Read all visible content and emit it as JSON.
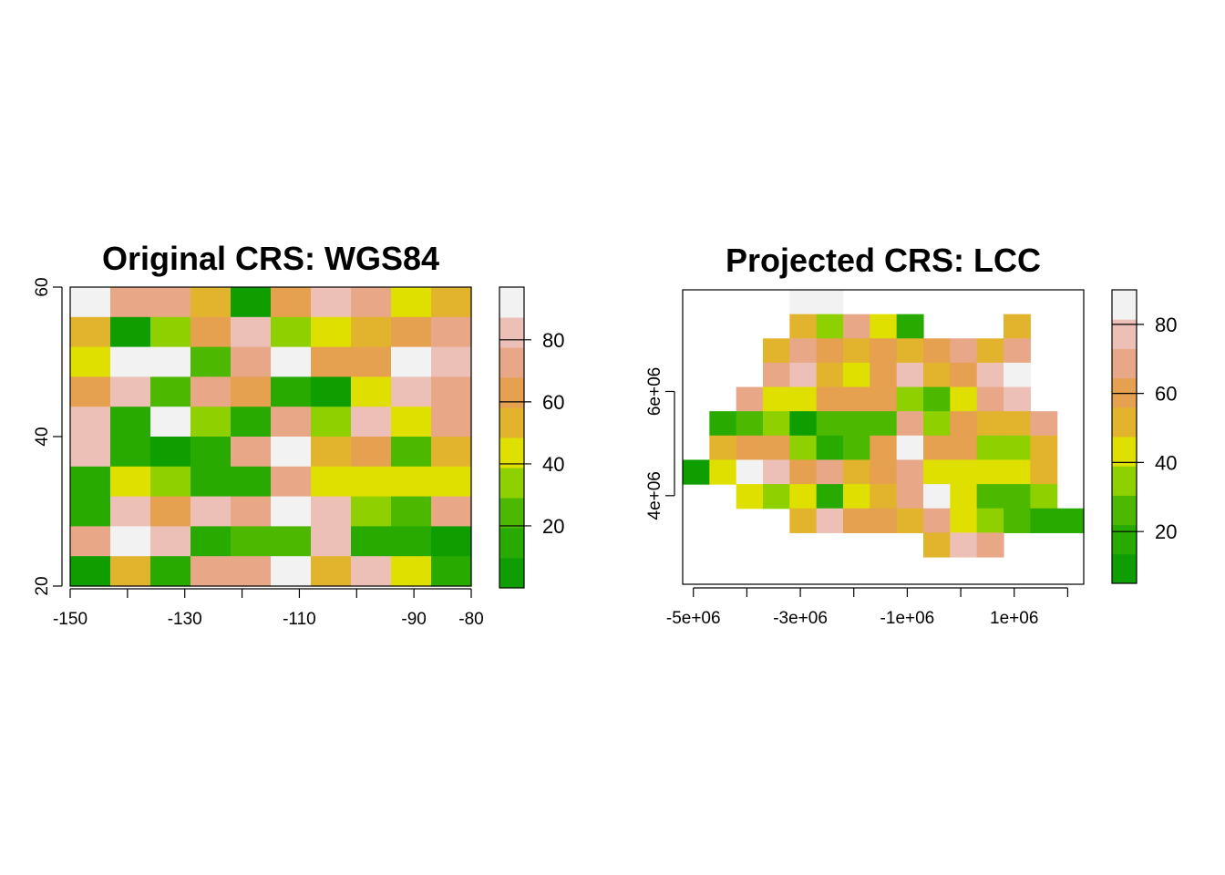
{
  "palette": {
    "colors": [
      "#0e9e00",
      "#28aa00",
      "#4cb900",
      "#8fd100",
      "#e0e000",
      "#e2b42e",
      "#e5a050",
      "#e8a888",
      "#ecc0b6",
      "#f2f2f2"
    ],
    "breaks": [
      0,
      10,
      20,
      30,
      40,
      50,
      60,
      70,
      80,
      90,
      100
    ]
  },
  "chart_data": [
    {
      "type": "heatmap",
      "title": "Original CRS: WGS84",
      "x_range": [
        -150,
        -80
      ],
      "y_range": [
        20,
        60
      ],
      "x_ticks": [
        -150,
        -140,
        -130,
        -120,
        -110,
        -100,
        -90,
        -80
      ],
      "x_tick_labels": [
        "-150",
        "",
        "-130",
        "",
        "-110",
        "",
        "-90",
        "-80"
      ],
      "y_ticks": [
        20,
        40,
        60
      ],
      "y_tick_labels": [
        "20",
        "40",
        "60"
      ],
      "legend_ticks": [
        20,
        40,
        60,
        80
      ],
      "legend_range": [
        0,
        97
      ],
      "legend_colors": [
        "#0e9e00",
        "#28aa00",
        "#4cb900",
        "#8fd100",
        "#e0e000",
        "#e2b42e",
        "#e5a050",
        "#e8a888",
        "#ecc0b6",
        "#f2f2f2"
      ],
      "ncols": 10,
      "nrows": 10,
      "values": [
        [
          95,
          75,
          75,
          55,
          5,
          65,
          85,
          75,
          45,
          55
        ],
        [
          55,
          5,
          35,
          65,
          85,
          35,
          45,
          55,
          65,
          75
        ],
        [
          45,
          95,
          95,
          25,
          75,
          95,
          65,
          65,
          95,
          85
        ],
        [
          65,
          85,
          25,
          75,
          65,
          15,
          5,
          45,
          85,
          75
        ],
        [
          85,
          15,
          95,
          35,
          15,
          75,
          35,
          85,
          45,
          75
        ],
        [
          85,
          15,
          5,
          15,
          75,
          95,
          55,
          65,
          25,
          55
        ],
        [
          15,
          45,
          35,
          15,
          15,
          75,
          45,
          45,
          45,
          45
        ],
        [
          15,
          85,
          65,
          85,
          75,
          95,
          85,
          35,
          25,
          75
        ],
        [
          75,
          95,
          85,
          15,
          25,
          25,
          85,
          15,
          15,
          5
        ],
        [
          5,
          55,
          15,
          75,
          75,
          95,
          55,
          85,
          45,
          15
        ]
      ]
    },
    {
      "type": "heatmap",
      "title": "Projected CRS: LCC",
      "x_range": [
        -5200000,
        2300000
      ],
      "y_range": [
        2300000,
        7950000
      ],
      "x_ticks": [
        -5000000,
        -4000000,
        -3000000,
        -2000000,
        -1000000,
        0,
        1000000,
        2000000
      ],
      "x_tick_labels": [
        "-5e+06",
        "",
        "-3e+06",
        "",
        "-1e+06",
        "",
        "1e+06",
        ""
      ],
      "y_ticks": [
        4000000,
        6000000
      ],
      "y_tick_labels": [
        "4e+06",
        "6e+06"
      ],
      "legend_ticks": [
        20,
        40,
        60,
        80
      ],
      "legend_range": [
        5,
        90
      ],
      "legend_colors": [
        "#0e9e00",
        "#28aa00",
        "#4cb900",
        "#8fd100",
        "#e0e000",
        "#e2b42e",
        "#e5a050",
        "#e8a888",
        "#ecc0b6",
        "#f2f2f2"
      ],
      "ncols": 15,
      "nrows": 11,
      "values": [
        [
          null,
          null,
          null,
          null,
          95,
          95,
          null,
          null,
          null,
          null,
          null,
          null,
          null,
          null,
          null
        ],
        [
          null,
          null,
          null,
          null,
          55,
          35,
          75,
          45,
          15,
          null,
          null,
          null,
          55,
          null,
          null
        ],
        [
          null,
          null,
          null,
          55,
          75,
          65,
          55,
          65,
          55,
          65,
          75,
          55,
          75,
          null,
          null
        ],
        [
          null,
          null,
          null,
          75,
          85,
          55,
          45,
          65,
          85,
          55,
          65,
          85,
          95,
          null,
          null
        ],
        [
          null,
          null,
          75,
          45,
          45,
          65,
          65,
          65,
          35,
          25,
          45,
          75,
          85,
          null,
          null
        ],
        [
          null,
          15,
          25,
          35,
          5,
          25,
          25,
          25,
          75,
          35,
          65,
          55,
          55,
          75,
          null
        ],
        [
          null,
          55,
          65,
          65,
          35,
          15,
          25,
          65,
          95,
          65,
          65,
          35,
          35,
          55,
          null
        ],
        [
          5,
          45,
          95,
          85,
          65,
          75,
          55,
          65,
          75,
          45,
          45,
          45,
          45,
          55,
          null
        ],
        [
          null,
          null,
          45,
          35,
          45,
          15,
          45,
          55,
          75,
          95,
          45,
          25,
          25,
          35,
          null
        ],
        [
          null,
          null,
          null,
          null,
          55,
          85,
          65,
          65,
          55,
          75,
          45,
          35,
          25,
          15,
          15
        ],
        [
          null,
          null,
          null,
          null,
          null,
          null,
          null,
          null,
          null,
          55,
          85,
          75,
          null,
          null,
          null
        ]
      ]
    }
  ]
}
